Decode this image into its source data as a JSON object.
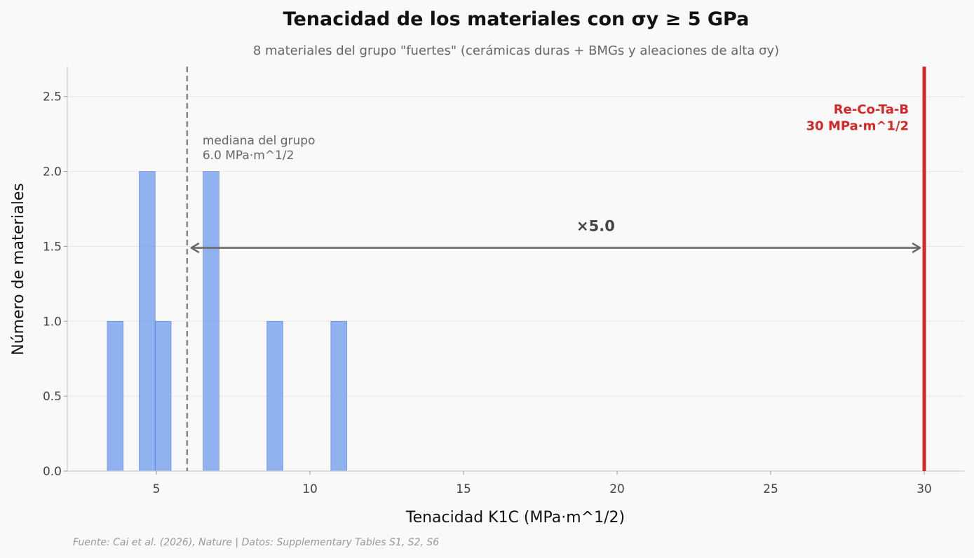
{
  "chart_data": {
    "type": "bar",
    "title": "Tenacidad de los materiales con σy ≥ 5 GPa",
    "subtitle": "8 materiales del grupo \"fuertes\" (cerámicas duras + BMGs y aleaciones de alta σy)",
    "xlabel": "Tenacidad  K1C  (MPa·m^1/2)",
    "ylabel": "Número de materiales",
    "xlim": [
      2.1,
      31.3
    ],
    "ylim": [
      0,
      2.7
    ],
    "xticks": [
      5,
      10,
      15,
      20,
      25,
      30
    ],
    "yticks": [
      0.0,
      0.5,
      1.0,
      1.5,
      2.0,
      2.5
    ],
    "xtick_labels": [
      "5",
      "10",
      "15",
      "20",
      "25",
      "30"
    ],
    "ytick_labels": [
      "0.0",
      "0.5",
      "1.0",
      "1.5",
      "2.0",
      "2.5"
    ],
    "grid": "horizontal",
    "bar_color": "#6495ed",
    "bins": [
      {
        "x0": 3.4,
        "x1": 3.92,
        "count": 1
      },
      {
        "x0": 3.92,
        "x1": 4.44,
        "count": 0
      },
      {
        "x0": 4.44,
        "x1": 4.96,
        "count": 2
      },
      {
        "x0": 4.96,
        "x1": 5.48,
        "count": 1
      },
      {
        "x0": 5.48,
        "x1": 6.0,
        "count": 0
      },
      {
        "x0": 6.0,
        "x1": 6.52,
        "count": 0
      },
      {
        "x0": 6.52,
        "x1": 7.04,
        "count": 2
      },
      {
        "x0": 7.04,
        "x1": 7.56,
        "count": 0
      },
      {
        "x0": 7.56,
        "x1": 8.08,
        "count": 0
      },
      {
        "x0": 8.08,
        "x1": 8.6,
        "count": 0
      },
      {
        "x0": 8.6,
        "x1": 9.12,
        "count": 1
      },
      {
        "x0": 9.12,
        "x1": 9.64,
        "count": 0
      },
      {
        "x0": 9.64,
        "x1": 10.16,
        "count": 0
      },
      {
        "x0": 10.16,
        "x1": 10.68,
        "count": 0
      },
      {
        "x0": 10.68,
        "x1": 11.2,
        "count": 1
      }
    ],
    "median": {
      "x": 6.0,
      "label_line1": "mediana del grupo",
      "label_line2": "6.0 MPa·m^1/2"
    },
    "reference": {
      "x": 30,
      "color": "#d62728",
      "label_line1": "Re-Co-Ta-B",
      "label_line2": "30 MPa·m^1/2"
    },
    "ratio_arrow": {
      "from": 6.0,
      "to": 30,
      "y": 1.49,
      "label": "×5.0"
    },
    "source": "Fuente: Cai et al. (2026), Nature | Datos: Supplementary Tables S1, S2, S6"
  }
}
